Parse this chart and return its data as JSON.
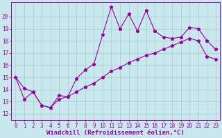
{
  "xlabel": "Windchill (Refroidissement éolien,°C)",
  "line1_x": [
    0,
    1,
    2,
    3,
    4,
    5,
    6,
    7,
    8,
    9,
    10,
    11,
    12,
    13,
    14,
    15,
    16,
    17,
    18,
    19,
    20,
    21,
    22,
    23
  ],
  "line1_y": [
    15.0,
    14.1,
    13.8,
    12.7,
    12.5,
    13.5,
    13.4,
    14.9,
    15.6,
    16.1,
    18.5,
    20.8,
    19.0,
    20.2,
    18.8,
    20.5,
    18.8,
    18.3,
    18.2,
    18.3,
    19.1,
    19.0,
    18.0,
    17.3
  ],
  "line2_x": [
    0,
    1,
    2,
    3,
    4,
    5,
    6,
    7,
    8,
    9,
    10,
    11,
    12,
    13,
    14,
    15,
    16,
    17,
    18,
    19,
    20,
    21,
    22,
    23
  ],
  "line2_y": [
    15.0,
    13.2,
    13.8,
    12.7,
    12.5,
    13.2,
    13.4,
    13.8,
    14.2,
    14.5,
    15.0,
    15.5,
    15.8,
    16.2,
    16.5,
    16.8,
    17.0,
    17.3,
    17.6,
    17.9,
    18.2,
    18.0,
    16.7,
    16.5
  ],
  "line_color": "#990099",
  "bg_color": "#c8e8ee",
  "grid_color": "#a8ccd4",
  "xlim": [
    -0.5,
    23.5
  ],
  "ylim": [
    11.5,
    21.2
  ],
  "yticks": [
    12,
    13,
    14,
    15,
    16,
    17,
    18,
    19,
    20
  ],
  "xticks": [
    0,
    1,
    2,
    3,
    4,
    5,
    6,
    7,
    8,
    9,
    10,
    11,
    12,
    13,
    14,
    15,
    16,
    17,
    18,
    19,
    20,
    21,
    22,
    23
  ],
  "tick_fontsize": 5.5,
  "label_fontsize": 6.5,
  "marker": "*",
  "marker_size": 3.5,
  "linewidth": 0.8
}
